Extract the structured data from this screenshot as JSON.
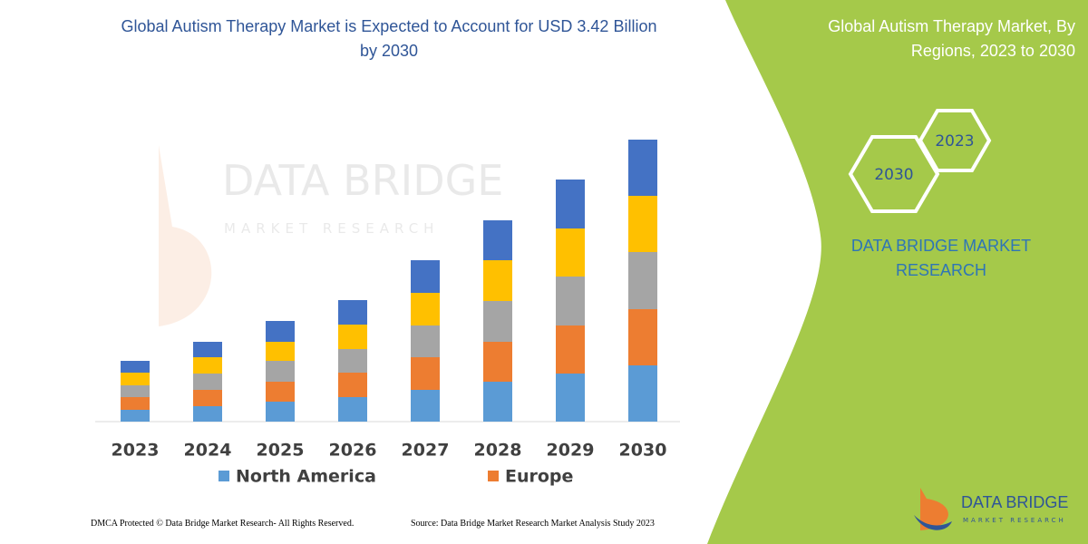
{
  "chart_data": {
    "type": "bar",
    "stacked": true,
    "title": "Global Autism Therapy Market is Expected to Account for USD 3.42 Billion by 2030",
    "categories": [
      "2023",
      "2024",
      "2025",
      "2026",
      "2027",
      "2028",
      "2029",
      "2030"
    ],
    "series": [
      {
        "name": "North America",
        "color": "#5b9bd5",
        "values": [
          13,
          17,
          22,
          27,
          35,
          44,
          53,
          62
        ]
      },
      {
        "name": "Europe",
        "color": "#ed7d31",
        "values": [
          14,
          18,
          22,
          27,
          36,
          44,
          53,
          62
        ]
      },
      {
        "color": "#a5a5a5",
        "values": [
          13,
          18,
          23,
          26,
          35,
          45,
          54,
          63
        ]
      },
      {
        "color": "#ffc000",
        "values": [
          14,
          18,
          21,
          27,
          36,
          45,
          53,
          62
        ]
      },
      {
        "color": "#4472c4",
        "values": [
          13,
          17,
          23,
          27,
          36,
          44,
          54,
          62
        ]
      }
    ],
    "ylim": [
      0,
      320
    ],
    "grid": false
  },
  "panel": {
    "title": "Global Autism Therapy Market, By Regions, 2023 to 2030",
    "hex_small": "2023",
    "hex_large": "2030",
    "brand": "DATA BRIDGE MARKET RESEARCH"
  },
  "watermark": {
    "name": "DATA BRIDGE",
    "sub": "MARKET RESEARCH"
  },
  "footer": {
    "left": "DMCA Protected © Data Bridge Market Research- All Rights Reserved.",
    "right": "Source: Data Bridge Market Research Market Analysis Study 2023"
  },
  "logo": {
    "name": "DATA BRIDGE",
    "sub": "MARKET RESEARCH"
  }
}
